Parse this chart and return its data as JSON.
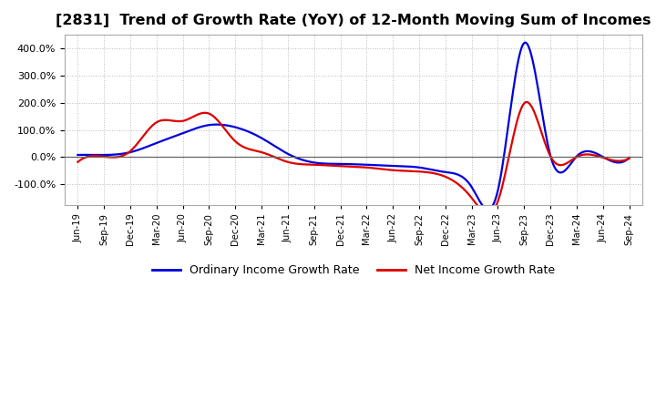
{
  "title": "[2831]  Trend of Growth Rate (YoY) of 12-Month Moving Sum of Incomes",
  "title_fontsize": 11.5,
  "background_color": "#ffffff",
  "plot_bg_color": "#ffffff",
  "grid_color": "#bbbbbb",
  "line_color_ordinary": "#0000dd",
  "line_color_net": "#dd0000",
  "line_width": 1.6,
  "legend_ordinary": "Ordinary Income Growth Rate",
  "legend_net": "Net Income Growth Rate",
  "xlabels": [
    "Jun-19",
    "Sep-19",
    "Dec-19",
    "Mar-20",
    "Jun-20",
    "Sep-20",
    "Dec-20",
    "Mar-21",
    "Jun-21",
    "Sep-21",
    "Dec-21",
    "Mar-22",
    "Jun-22",
    "Sep-22",
    "Dec-22",
    "Mar-23",
    "Jun-23",
    "Sep-23",
    "Dec-23",
    "Mar-24",
    "Jun-24",
    "Sep-24"
  ],
  "ylim": [
    -175,
    450
  ],
  "yticks": [
    -100,
    0,
    100,
    200,
    300,
    400
  ],
  "ordinary_income_growth": [
    8,
    8,
    18,
    52,
    88,
    118,
    110,
    70,
    12,
    -20,
    -25,
    -28,
    -32,
    -38,
    -55,
    -110,
    -122,
    420,
    5,
    3,
    1,
    -2
  ],
  "net_income_growth": [
    -18,
    2,
    22,
    128,
    133,
    160,
    58,
    18,
    -18,
    -28,
    -33,
    -38,
    -48,
    -53,
    -72,
    -150,
    -162,
    198,
    3,
    1,
    -2,
    -5
  ]
}
